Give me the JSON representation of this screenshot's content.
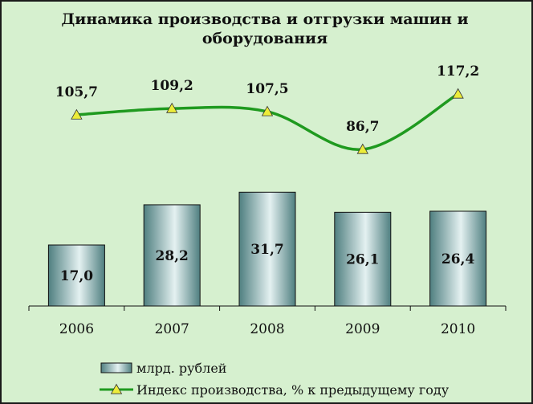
{
  "chart_data": {
    "type": "bar+line",
    "title": "Динамика производства и отгрузки машин и оборудования",
    "categories": [
      "2006",
      "2007",
      "2008",
      "2009",
      "2010"
    ],
    "series": [
      {
        "name": "млрд. рублей",
        "type": "bar",
        "values": [
          17.0,
          28.2,
          31.7,
          26.1,
          26.4
        ],
        "labels": [
          "17,0",
          "28,2",
          "31,7",
          "26,1",
          "26,4"
        ]
      },
      {
        "name": "Индекс производства, % к предыдущему году",
        "type": "line",
        "values": [
          105.7,
          109.2,
          107.5,
          86.7,
          117.2
        ],
        "labels": [
          "105,7",
          "109,2",
          "107,5",
          "86,7",
          "117,2"
        ]
      }
    ],
    "legend_position": "bottom",
    "colors": {
      "background": "#d6f0cf",
      "bar_fill_light": "#e4f1f1",
      "bar_fill_dark": "#4f7f80",
      "line": "#1f9a1f",
      "marker": "#ecec3a"
    }
  }
}
